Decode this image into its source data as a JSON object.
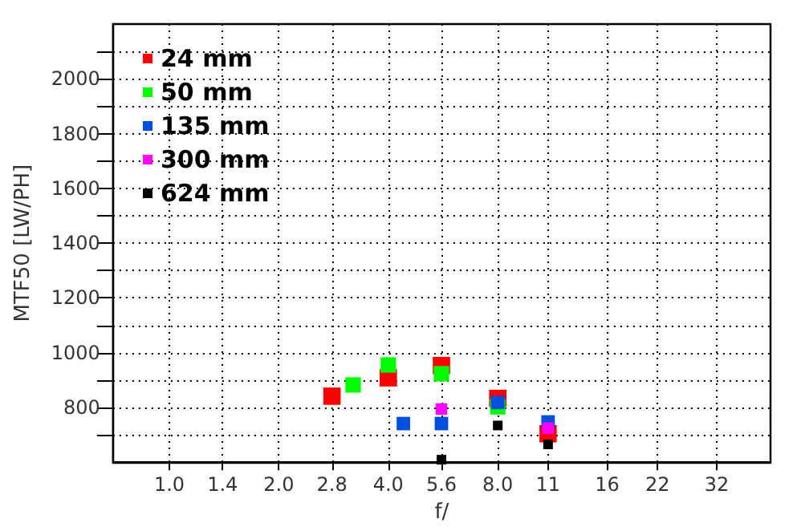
{
  "chart_data": {
    "type": "scatter",
    "xlabel": "f/",
    "ylabel": "MTF50 [LW/PH]",
    "log": "x",
    "grid": true,
    "legend": "top left",
    "marker": "square",
    "xlim": [
      0.7,
      45
    ],
    "xticks": [
      {
        "value": 1,
        "label": "1.0"
      },
      1.4,
      {
        "value": 2,
        "label": "2.0"
      },
      2.8,
      {
        "value": 4,
        "label": "4.0"
      },
      5.6,
      {
        "value": 8,
        "label": "8.0"
      },
      11,
      16,
      22,
      32
    ],
    "ylim": [
      600,
      2200
    ],
    "yticks": [
      {
        "value": 700,
        "label": null
      },
      800,
      {
        "value": 900,
        "label": null
      },
      1000,
      {
        "value": 1100,
        "label": null
      },
      1200,
      {
        "value": 1300,
        "label": null
      },
      1400,
      {
        "value": 1500,
        "label": null
      },
      1600,
      {
        "value": 1700,
        "label": null
      },
      1800,
      {
        "value": 1900,
        "label": null
      },
      2000,
      {
        "value": 2100,
        "label": null
      }
    ],
    "series": [
      {
        "name": "24 mm",
        "color": "#ff0000",
        "x": [
          2.8,
          4,
          5.6,
          8,
          11
        ],
        "values": [
          841,
          908,
          953,
          833,
          704
        ]
      },
      {
        "name": "50 mm",
        "color": "#00ff00",
        "x": [
          3.2,
          4,
          5.6,
          8
        ],
        "values": [
          882,
          955,
          923,
          802
        ]
      },
      {
        "name": "135 mm",
        "color": "#0050e0",
        "x": [
          4.4,
          5.6,
          8,
          11
        ],
        "values": [
          741,
          741,
          818,
          747
        ]
      },
      {
        "name": "300 mm",
        "color": "#ff00ff",
        "x": [
          5.6,
          11
        ],
        "values": [
          794,
          724
        ]
      },
      {
        "name": "624 mm",
        "color": "#000000",
        "x": [
          5.6,
          8,
          11
        ],
        "values": [
          609,
          734,
          665
        ]
      }
    ]
  }
}
